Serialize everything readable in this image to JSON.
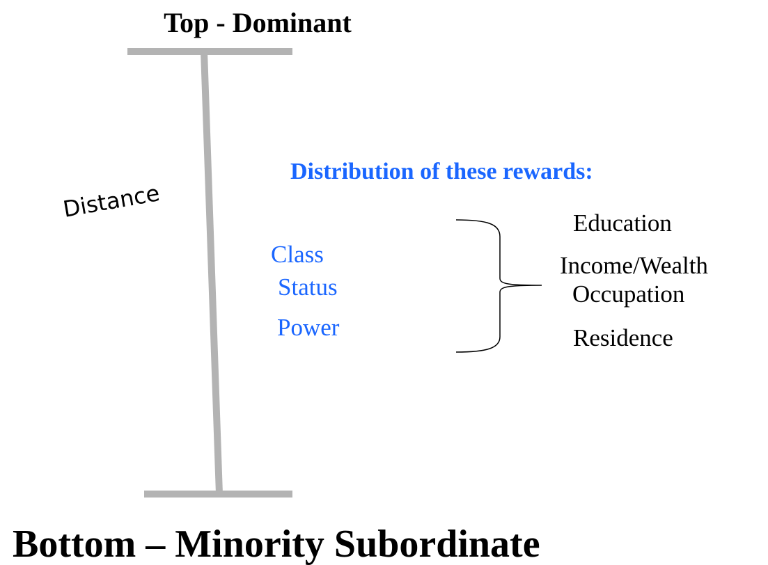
{
  "top_label": "Top - Dominant",
  "bottom_label": "Bottom – Minority Subordinate",
  "axis_label": "Distance",
  "rewards_title": "Distribution of these rewards:",
  "dimensions": [
    "Class",
    "Status",
    "Power"
  ],
  "rewards": [
    "Education",
    "Income/Wealth",
    "Occupation",
    "Residence"
  ]
}
